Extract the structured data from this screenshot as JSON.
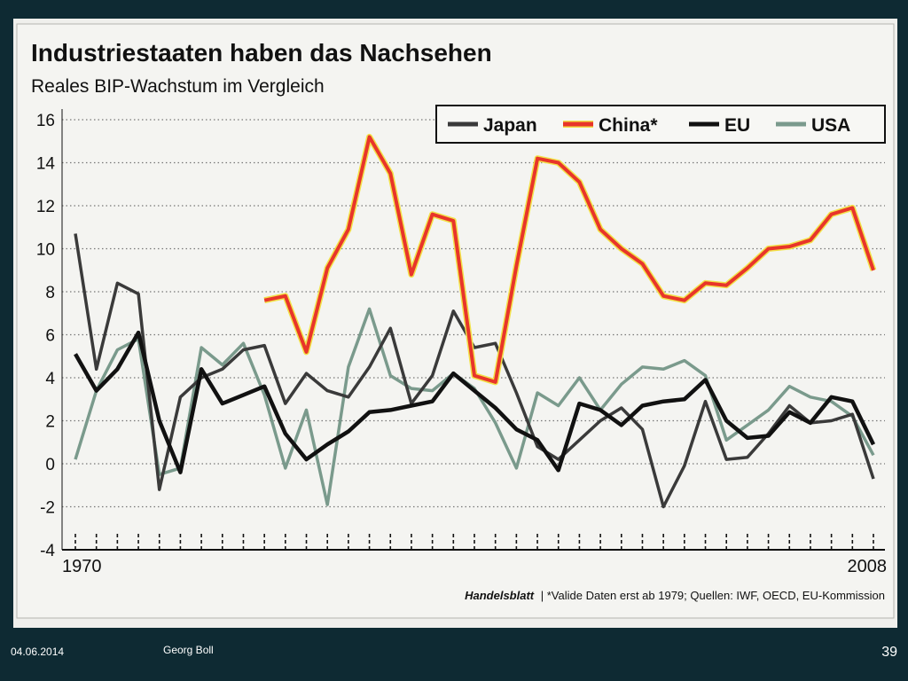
{
  "slide": {
    "date": "04.06.2014",
    "author": "Georg Boll",
    "page": "39"
  },
  "chart_data": {
    "type": "line",
    "title": "Industriestaaten haben das Nachsehen",
    "subtitle": "Reales BIP-Wachstum im Vergleich",
    "xlabel": "",
    "ylabel": "",
    "x": [
      1970,
      1971,
      1972,
      1973,
      1974,
      1975,
      1976,
      1977,
      1978,
      1979,
      1980,
      1981,
      1982,
      1983,
      1984,
      1985,
      1986,
      1987,
      1988,
      1989,
      1990,
      1991,
      1992,
      1993,
      1994,
      1995,
      1996,
      1997,
      1998,
      1999,
      2000,
      2001,
      2002,
      2003,
      2004,
      2005,
      2006,
      2007,
      2008
    ],
    "x_tick_labels": [
      "1970",
      "2008"
    ],
    "yticks": [
      16,
      14,
      12,
      10,
      8,
      6,
      4,
      2,
      0,
      -2,
      -4
    ],
    "ylim": [
      -4,
      16
    ],
    "grid": "horizontal dotted",
    "legend_position": "top-right",
    "series": [
      {
        "name": "Japan",
        "color": "#3a3a3a",
        "values": [
          10.7,
          4.4,
          8.4,
          7.9,
          -1.2,
          3.1,
          4.0,
          4.4,
          5.3,
          5.5,
          2.8,
          4.2,
          3.4,
          3.1,
          4.5,
          6.3,
          2.8,
          4.1,
          7.1,
          5.4,
          5.6,
          3.3,
          0.8,
          0.2,
          1.1,
          2.0,
          2.6,
          1.6,
          -2.0,
          -0.1,
          2.9,
          0.2,
          0.3,
          1.4,
          2.7,
          1.9,
          2.0,
          2.3,
          -0.7
        ]
      },
      {
        "name": "China*",
        "color": "#e8352a",
        "highlight": "#f2e24a",
        "values": [
          null,
          null,
          null,
          null,
          null,
          null,
          null,
          null,
          null,
          7.6,
          7.8,
          5.2,
          9.1,
          10.9,
          15.2,
          13.5,
          8.8,
          11.6,
          11.3,
          4.1,
          3.8,
          9.2,
          14.2,
          14.0,
          13.1,
          10.9,
          10.0,
          9.3,
          7.8,
          7.6,
          8.4,
          8.3,
          9.1,
          10.0,
          10.1,
          10.4,
          11.6,
          11.9,
          9.0
        ]
      },
      {
        "name": "EU",
        "color": "#111111",
        "values": [
          5.1,
          3.4,
          4.4,
          6.1,
          2.0,
          -0.4,
          4.4,
          2.8,
          3.2,
          3.6,
          1.4,
          0.2,
          0.9,
          1.5,
          2.4,
          2.5,
          2.7,
          2.9,
          4.2,
          3.4,
          2.6,
          1.6,
          1.1,
          -0.3,
          2.8,
          2.5,
          1.8,
          2.7,
          2.9,
          3.0,
          3.9,
          2.0,
          1.2,
          1.3,
          2.4,
          1.9,
          3.1,
          2.9,
          0.9
        ]
      },
      {
        "name": "USA",
        "color": "#7a9a8c",
        "values": [
          0.2,
          3.4,
          5.3,
          5.8,
          -0.5,
          -0.2,
          5.4,
          4.6,
          5.6,
          3.2,
          -0.2,
          2.5,
          -1.9,
          4.5,
          7.2,
          4.1,
          3.5,
          3.4,
          4.2,
          3.5,
          1.9,
          -0.2,
          3.3,
          2.7,
          4.0,
          2.5,
          3.7,
          4.5,
          4.4,
          4.8,
          4.1,
          1.1,
          1.8,
          2.5,
          3.6,
          3.1,
          2.9,
          2.2,
          0.4
        ]
      }
    ],
    "source_brand": "Handelsblatt",
    "source_note": "| *Valide Daten erst ab 1979; Quellen: IWF, OECD, EU-Kommission"
  }
}
